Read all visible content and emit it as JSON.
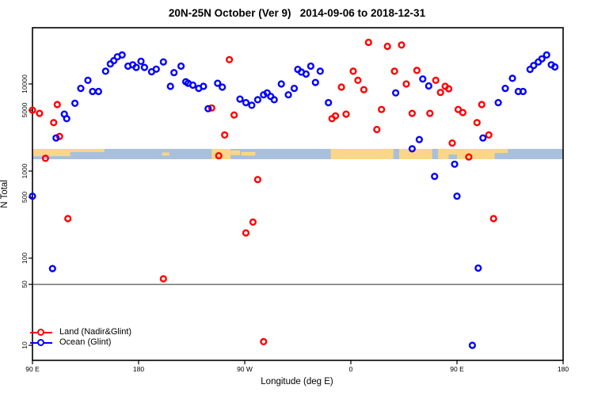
{
  "title": "20N-25N October (Ver 9)   2014-09-06 to 2018-12-31",
  "axes": {
    "x": {
      "label": "Longitude (deg E)",
      "domain": [
        90,
        540
      ],
      "note_wrapped_longitude": "axis spans 90E eastward around the globe 1.25 times",
      "ticks": [
        {
          "value": 90,
          "label": "90 E"
        },
        {
          "value": 180,
          "label": "180"
        },
        {
          "value": 270,
          "label": "90 W"
        },
        {
          "value": 360,
          "label": "0"
        },
        {
          "value": 450,
          "label": "90 E"
        },
        {
          "value": 540,
          "label": "180"
        }
      ]
    },
    "y": {
      "label": "N Total",
      "scale": "log",
      "domain": [
        6,
        45000
      ],
      "ticks": [
        {
          "value": 10,
          "label": "10"
        },
        {
          "value": 50,
          "label": "50"
        },
        {
          "value": 100,
          "label": "100"
        },
        {
          "value": 500,
          "label": "500"
        },
        {
          "value": 1000,
          "label": "1000"
        },
        {
          "value": 5000,
          "label": "5000"
        },
        {
          "value": 10000,
          "label": "10000"
        }
      ]
    }
  },
  "legend": {
    "items": [
      {
        "label": "Land (Nadir&Glint)",
        "color": "#ff0000"
      },
      {
        "label": "Ocean (Glint)",
        "color": "#0000ff"
      }
    ]
  },
  "colors": {
    "land_series": "#ff0000",
    "ocean_series": "#0000ff",
    "map_land": "#fbd687",
    "map_ocean": "#a9c0dc",
    "reference_line": "#555555",
    "frame": "#000000"
  },
  "chart_data": {
    "type": "scatter",
    "title": "20N-25N October (Ver 9)   2014-09-06 to 2018-12-31",
    "xlabel": "Longitude (deg E)",
    "ylabel": "N Total",
    "xlim": [
      90,
      540
    ],
    "ylim_log": [
      6,
      45000
    ],
    "reference_line_y": 50,
    "grid": false,
    "legend_position": "bottom-left",
    "series": [
      {
        "name": "Land (Nadir&Glint)",
        "color": "#ff0000",
        "marker": "open-circle",
        "points": [
          [
            90,
            5000
          ],
          [
            96,
            4600
          ],
          [
            101,
            1400
          ],
          [
            108,
            3600
          ],
          [
            111,
            5800
          ],
          [
            113,
            2500
          ],
          [
            120,
            285
          ],
          [
            201,
            58
          ],
          [
            242,
            5300
          ],
          [
            248,
            1500
          ],
          [
            253,
            2600
          ],
          [
            257,
            19000
          ],
          [
            261,
            4400
          ],
          [
            271,
            195
          ],
          [
            277,
            260
          ],
          [
            281,
            800
          ],
          [
            286,
            11
          ],
          [
            344,
            4000
          ],
          [
            347,
            4300
          ],
          [
            352,
            9200
          ],
          [
            356,
            4500
          ],
          [
            362,
            14000
          ],
          [
            366,
            11000
          ],
          [
            371,
            8600
          ],
          [
            375,
            30000
          ],
          [
            382,
            3000
          ],
          [
            386,
            5100
          ],
          [
            391,
            27000
          ],
          [
            397,
            14000
          ],
          [
            403,
            28000
          ],
          [
            407,
            10000
          ],
          [
            412,
            4600
          ],
          [
            416,
            14300
          ],
          [
            427,
            4600
          ],
          [
            432,
            11000
          ],
          [
            436,
            8000
          ],
          [
            440,
            9400
          ],
          [
            443,
            8800
          ],
          [
            446,
            2100
          ],
          [
            451,
            5100
          ],
          [
            455,
            4700
          ],
          [
            460,
            1450
          ],
          [
            467,
            3600
          ],
          [
            471,
            5800
          ],
          [
            477,
            2600
          ],
          [
            481,
            285
          ]
        ]
      },
      {
        "name": "Ocean (Glint)",
        "color": "#0000ff",
        "marker": "open-circle",
        "points": [
          [
            90,
            515
          ],
          [
            107,
            76
          ],
          [
            110,
            2400
          ],
          [
            117,
            4500
          ],
          [
            119,
            4000
          ],
          [
            126,
            6000
          ],
          [
            131,
            8900
          ],
          [
            137,
            11000
          ],
          [
            141,
            8200
          ],
          [
            146,
            8200
          ],
          [
            152,
            14000
          ],
          [
            156,
            17000
          ],
          [
            159,
            18500
          ],
          [
            162,
            20500
          ],
          [
            166,
            21500
          ],
          [
            171,
            16000
          ],
          [
            175,
            16600
          ],
          [
            178,
            15500
          ],
          [
            182,
            18200
          ],
          [
            185,
            15500
          ],
          [
            191,
            13800
          ],
          [
            195,
            14800
          ],
          [
            201,
            17900
          ],
          [
            207,
            9400
          ],
          [
            210,
            13500
          ],
          [
            216,
            16000
          ],
          [
            220,
            10600
          ],
          [
            222,
            10200
          ],
          [
            226,
            9700
          ],
          [
            231,
            8900
          ],
          [
            235,
            9400
          ],
          [
            239,
            5200
          ],
          [
            247,
            10200
          ],
          [
            251,
            9200
          ],
          [
            266,
            6700
          ],
          [
            271,
            6100
          ],
          [
            276,
            5700
          ],
          [
            281,
            6600
          ],
          [
            286,
            7500
          ],
          [
            289,
            7900
          ],
          [
            292,
            7200
          ],
          [
            295,
            6600
          ],
          [
            301,
            10000
          ],
          [
            307,
            7500
          ],
          [
            312,
            8900
          ],
          [
            315,
            14700
          ],
          [
            318,
            13700
          ],
          [
            322,
            13000
          ],
          [
            326,
            16000
          ],
          [
            330,
            10400
          ],
          [
            334,
            14000
          ],
          [
            341,
            6100
          ],
          [
            398,
            7900
          ],
          [
            412,
            1800
          ],
          [
            418,
            2300
          ],
          [
            421,
            11400
          ],
          [
            426,
            9500
          ],
          [
            431,
            870
          ],
          [
            448,
            1200
          ],
          [
            450,
            515
          ],
          [
            463,
            10
          ],
          [
            468,
            77
          ],
          [
            472,
            2400
          ],
          [
            485,
            6100
          ],
          [
            491,
            8900
          ],
          [
            497,
            11600
          ],
          [
            502,
            8200
          ],
          [
            506,
            8200
          ],
          [
            512,
            14700
          ],
          [
            515,
            16300
          ],
          [
            519,
            17900
          ],
          [
            522,
            19400
          ],
          [
            526,
            21500
          ],
          [
            530,
            16600
          ],
          [
            533,
            15700
          ]
        ]
      }
    ],
    "map_strip": {
      "description": "land/ocean strip for the 20N-25N latitude band drawn across the plot",
      "land_segments": [
        {
          "from": 90,
          "to": 122,
          "top_frac": 0,
          "h_frac": 0.7
        },
        {
          "from": 122,
          "to": 151,
          "top_frac": 0,
          "h_frac": 0.3
        },
        {
          "from": 200,
          "to": 206,
          "top_frac": 0.35,
          "h_frac": 0.3
        },
        {
          "from": 242,
          "to": 258,
          "top_frac": 0,
          "h_frac": 1.0
        },
        {
          "from": 258,
          "to": 266,
          "top_frac": 0.15,
          "h_frac": 0.45
        },
        {
          "from": 267,
          "to": 279,
          "top_frac": 0.3,
          "h_frac": 0.35
        },
        {
          "from": 343,
          "to": 396,
          "top_frac": 0,
          "h_frac": 1.0
        },
        {
          "from": 401,
          "to": 429,
          "top_frac": 0,
          "h_frac": 1.0
        },
        {
          "from": 434,
          "to": 482,
          "top_frac": 0,
          "h_frac": 1.0
        },
        {
          "from": 482,
          "to": 493,
          "top_frac": 0,
          "h_frac": 0.4
        }
      ],
      "ocean_notches": [
        {
          "from": 443,
          "to": 450,
          "top_frac": 0.55,
          "h_frac": 0.45
        }
      ]
    }
  }
}
